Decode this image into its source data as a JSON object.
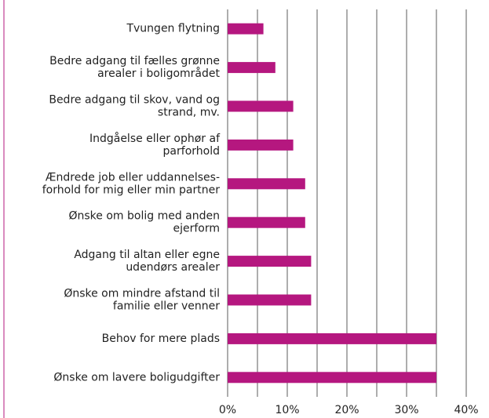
{
  "chart_data": {
    "type": "barh",
    "categories": [
      "Tvungen flytning",
      "Bedre adgang til fælles grønne\narealer i boligområdet",
      "Bedre adgang til skov, vand og\nstrand, mv.",
      "Indgåelse eller ophør af\nparforhold",
      "Ændrede job eller uddannelses-\nforhold for mig eller min partner",
      "Ønske om bolig med anden\nejerform",
      "Adgang til altan eller egne\nudendørs arealer",
      "Ønske om mindre afstand til\nfamilie eller venner",
      "Behov for mere plads",
      "Ønske om lavere boligudgifter"
    ],
    "values": [
      6,
      8,
      11,
      11,
      13,
      13,
      14,
      14,
      35,
      35
    ],
    "color": "#b5177f",
    "xlim": [
      0,
      40
    ],
    "xticks": [
      {
        "value": 0,
        "label": "0%"
      },
      {
        "value": 10,
        "label": "10%"
      },
      {
        "value": 20,
        "label": "20%"
      },
      {
        "value": 30,
        "label": "30%"
      },
      {
        "value": 40,
        "label": "40%"
      }
    ],
    "minor_gridlines": [
      5,
      15,
      25,
      35
    ],
    "grid": true
  }
}
